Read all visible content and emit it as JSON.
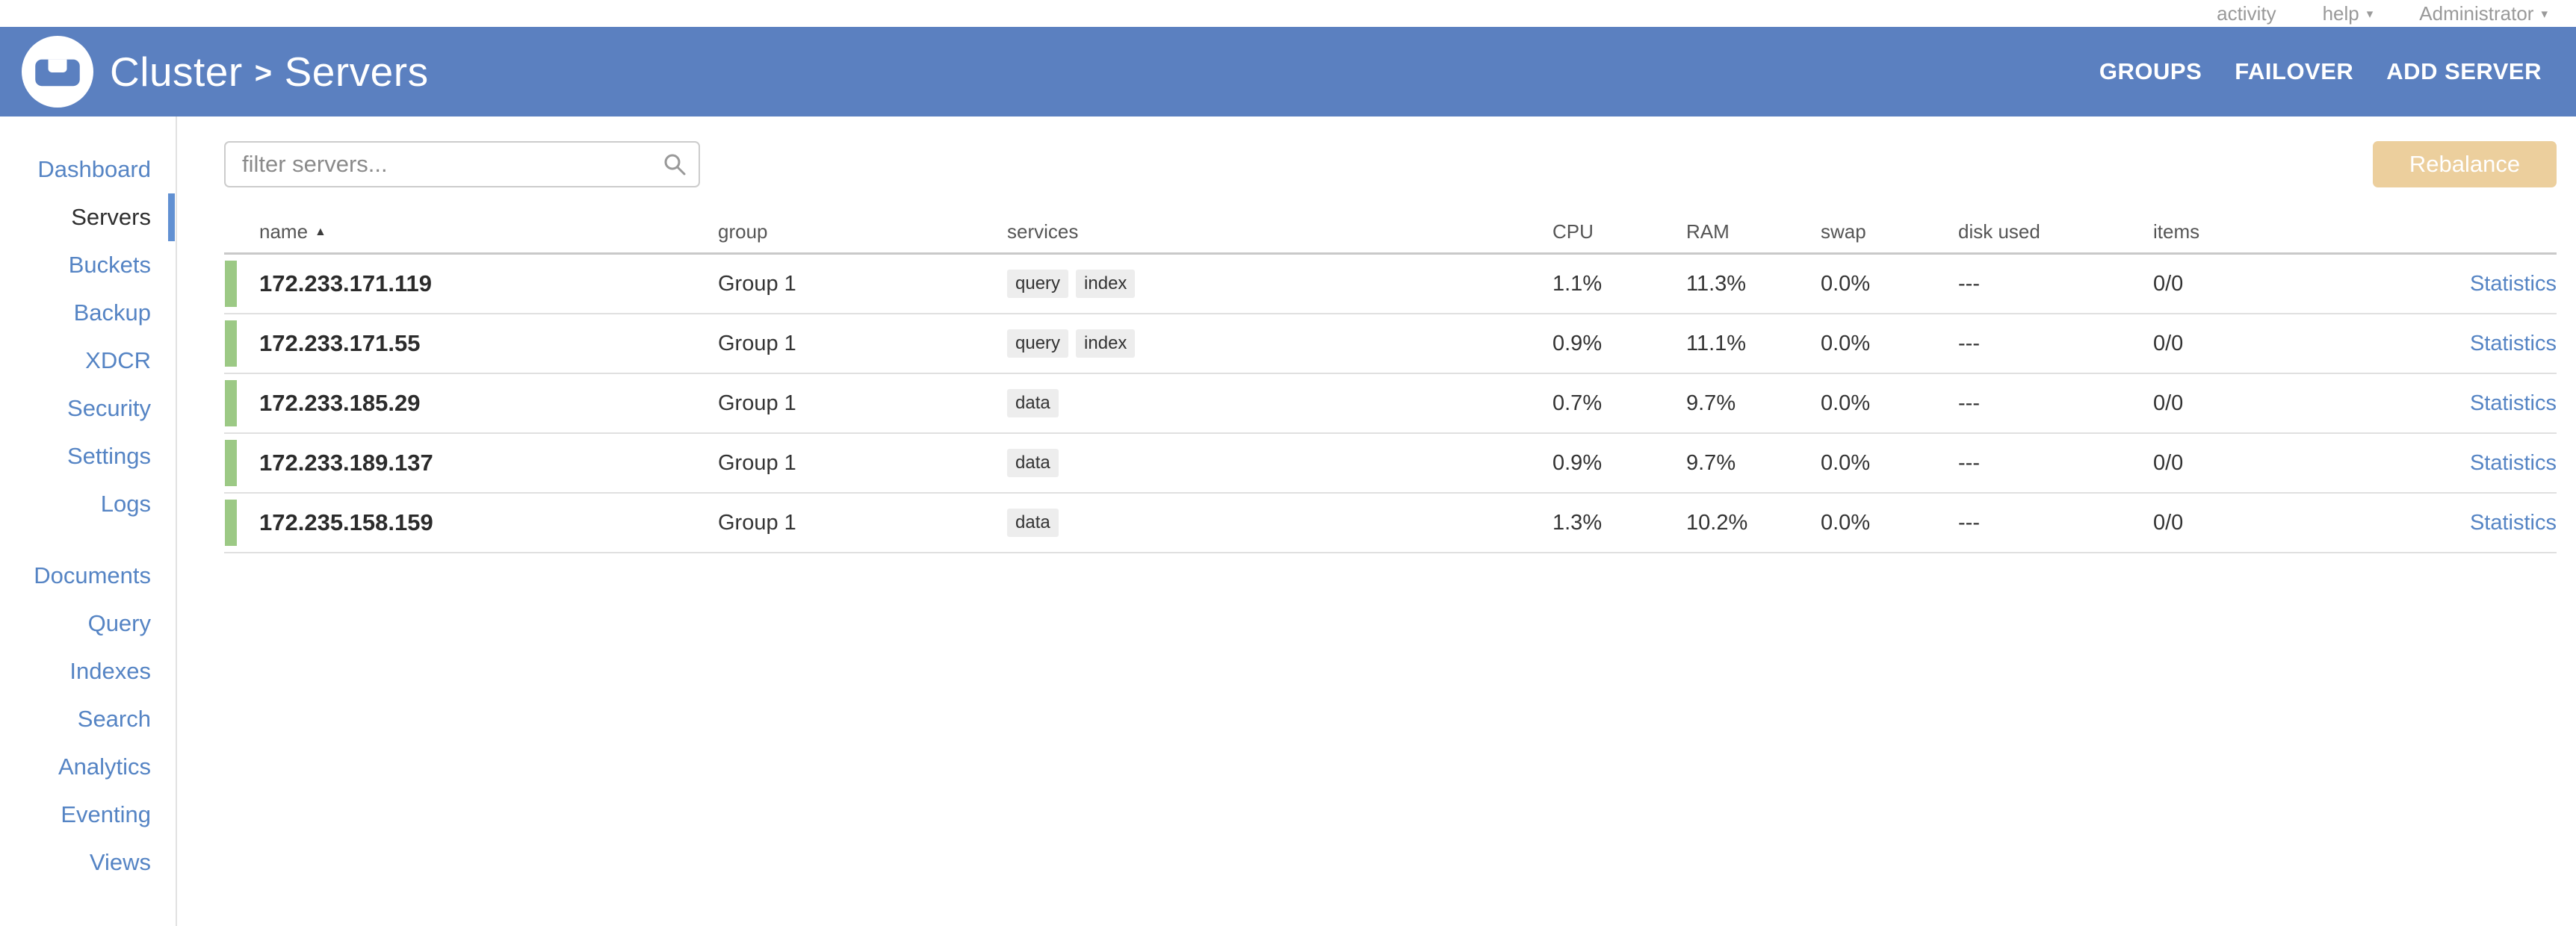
{
  "icons": {
    "caret_down": "▾",
    "sort_asc": "▲"
  },
  "topbar": {
    "activity_label": "activity",
    "help_label": "help",
    "user_label": "Administrator"
  },
  "header": {
    "breadcrumb_root": "Cluster",
    "breadcrumb_separator": ">",
    "breadcrumb_page": "Servers",
    "nav": {
      "groups_label": "GROUPS",
      "failover_label": "FAILOVER",
      "add_server_label": "ADD SERVER"
    }
  },
  "sidebar": {
    "active": "Servers",
    "groups": [
      [
        "Dashboard",
        "Servers",
        "Buckets",
        "Backup",
        "XDCR",
        "Security",
        "Settings",
        "Logs"
      ],
      [
        "Documents",
        "Query",
        "Indexes",
        "Search",
        "Analytics",
        "Eventing",
        "Views"
      ]
    ]
  },
  "toolbar": {
    "filter_placeholder": "filter servers...",
    "rebalance_label": "Rebalance"
  },
  "table": {
    "columns": [
      {
        "key": "name",
        "label": "name",
        "sorted": true
      },
      {
        "key": "group",
        "label": "group"
      },
      {
        "key": "services",
        "label": "services"
      },
      {
        "key": "cpu",
        "label": "CPU"
      },
      {
        "key": "ram",
        "label": "RAM"
      },
      {
        "key": "swap",
        "label": "swap"
      },
      {
        "key": "disk",
        "label": "disk used"
      },
      {
        "key": "items",
        "label": "items"
      },
      {
        "key": "stats",
        "label": ""
      }
    ],
    "rows": [
      {
        "name": "172.233.171.119",
        "group": "Group 1",
        "services": [
          "query",
          "index"
        ],
        "cpu": "1.1%",
        "ram": "11.3%",
        "swap": "0.0%",
        "disk": "---",
        "items": "0/0",
        "stats": "Statistics"
      },
      {
        "name": "172.233.171.55",
        "group": "Group 1",
        "services": [
          "query",
          "index"
        ],
        "cpu": "0.9%",
        "ram": "11.1%",
        "swap": "0.0%",
        "disk": "---",
        "items": "0/0",
        "stats": "Statistics"
      },
      {
        "name": "172.233.185.29",
        "group": "Group 1",
        "services": [
          "data"
        ],
        "cpu": "0.7%",
        "ram": "9.7%",
        "swap": "0.0%",
        "disk": "---",
        "items": "0/0",
        "stats": "Statistics"
      },
      {
        "name": "172.233.189.137",
        "group": "Group 1",
        "services": [
          "data"
        ],
        "cpu": "0.9%",
        "ram": "9.7%",
        "swap": "0.0%",
        "disk": "---",
        "items": "0/0",
        "stats": "Statistics"
      },
      {
        "name": "172.235.158.159",
        "group": "Group 1",
        "services": [
          "data"
        ],
        "cpu": "1.3%",
        "ram": "10.2%",
        "swap": "0.0%",
        "disk": "---",
        "items": "0/0",
        "stats": "Statistics"
      }
    ]
  },
  "colors": {
    "header_blue": "#5b80c0",
    "link_blue": "#5584c4",
    "active_indicator_blue": "#6190d2",
    "healthy_green": "#9cc985",
    "rebalance_tan": "#eccf9d"
  }
}
